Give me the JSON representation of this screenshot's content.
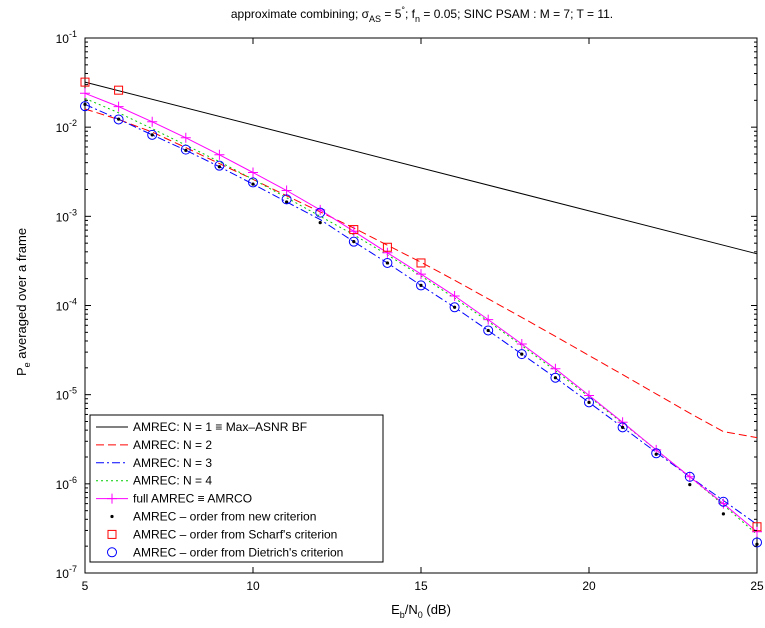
{
  "chart_data": {
    "type": "line",
    "title": {
      "pre": "approximate combining; σ",
      "sub1": "AS",
      "mid1": " = 5",
      "sup1": "°",
      "mid2": "; f",
      "sub2": "n",
      "post": " = 0.05; SINC PSAM : M = 7; T = 11."
    },
    "xlabel": {
      "main": "E",
      "sub1": "b",
      "mid": "/N",
      "sub2": "0",
      "post": " (dB)"
    },
    "ylabel": {
      "main": "P",
      "sub": "e",
      "post": " averaged over a frame"
    },
    "xlim": [
      5,
      25
    ],
    "ylim_log10": [
      -7,
      -1
    ],
    "yscale": "log",
    "grid": false,
    "legend_position": "bottom-left",
    "x_ticks": [
      5,
      10,
      15,
      20,
      25
    ],
    "x_tick_labels": [
      "5",
      "10",
      "15",
      "20",
      "25"
    ],
    "y_ticks": [
      -7,
      -6,
      -5,
      -4,
      -3,
      -2,
      -1
    ],
    "y_tick_labels": [
      {
        "base": "10",
        "exp": "-7"
      },
      {
        "base": "10",
        "exp": "-6"
      },
      {
        "base": "10",
        "exp": "-5"
      },
      {
        "base": "10",
        "exp": "-4"
      },
      {
        "base": "10",
        "exp": "-3"
      },
      {
        "base": "10",
        "exp": "-2"
      },
      {
        "base": "10",
        "exp": "-1"
      }
    ],
    "series": [
      {
        "name": "AMREC: N = 1 ≡ Max–ASNR BF",
        "color": "#000000",
        "dash": "solid",
        "marker": "none",
        "x": [
          5,
          25
        ],
        "y": [
          0.032,
          0.00038
        ]
      },
      {
        "name": "AMREC: N = 2",
        "color": "#ff0000",
        "dash": "dashed",
        "marker": "none",
        "x": [
          5,
          6,
          7,
          8,
          9,
          10,
          11,
          12,
          13,
          14,
          15,
          16,
          17,
          18,
          19,
          20,
          21,
          22,
          23,
          24,
          25
        ],
        "y": [
          0.016,
          0.0122,
          0.0088,
          0.0059,
          0.0039,
          0.0026,
          0.0017,
          0.00112,
          0.00074,
          0.000475,
          0.000305,
          0.000192,
          0.000119,
          7.35e-05,
          4.52e-05,
          2.75e-05,
          1.68e-05,
          1.02e-05,
          6.2e-06,
          3.85e-06,
          3.3e-06
        ]
      },
      {
        "name": "AMREC: N = 3",
        "color": "#0000ff",
        "dash": "dashdot",
        "marker": "none",
        "x": [
          5,
          6,
          7,
          8,
          9,
          10,
          11,
          12,
          13,
          14,
          15,
          16,
          17,
          18,
          19,
          20,
          21,
          22,
          23,
          24,
          25
        ],
        "y": [
          0.018,
          0.0123,
          0.0082,
          0.0055,
          0.0036,
          0.0023,
          0.00145,
          0.00092,
          0.00052,
          0.0003,
          0.000168,
          9.55e-05,
          5.25e-05,
          2.85e-05,
          1.55e-05,
          8.2e-06,
          4.3e-06,
          2.25e-06,
          1.2e-06,
          6.5e-07,
          3.5e-07
        ]
      },
      {
        "name": "AMREC: N = 4",
        "color": "#00cc00",
        "dash": "dotted",
        "marker": "none",
        "x": [
          5,
          6,
          7,
          8,
          9,
          10,
          11,
          12,
          13,
          14,
          15,
          16,
          17,
          18,
          19,
          20,
          21,
          22,
          23,
          24,
          25
        ],
        "y": [
          0.021,
          0.0145,
          0.0096,
          0.0063,
          0.0041,
          0.0026,
          0.00162,
          0.001,
          0.00062,
          0.00037,
          0.000215,
          0.000121,
          6.65e-05,
          3.55e-05,
          1.85e-05,
          9.5e-06,
          4.8e-06,
          2.4e-06,
          1.2e-06,
          5.8e-07,
          2.7e-07
        ]
      },
      {
        "name": "full AMREC ≡ AMRCO",
        "color": "#ff00ff",
        "dash": "solid",
        "marker": "plus",
        "x": [
          5,
          6,
          7,
          8,
          9,
          10,
          11,
          12,
          13,
          14,
          15,
          16,
          17,
          18,
          19,
          20,
          21,
          22,
          23,
          24,
          25
        ],
        "y": [
          0.024,
          0.017,
          0.0115,
          0.0076,
          0.0049,
          0.0031,
          0.00195,
          0.00118,
          0.00068,
          0.00039,
          0.000225,
          0.000128,
          6.95e-05,
          3.7e-05,
          1.95e-05,
          9.8e-06,
          4.9e-06,
          2.4e-06,
          1.2e-06,
          6e-07,
          2.9e-07
        ]
      },
      {
        "name": "AMREC – order from new criterion",
        "color": "#000000",
        "dash": "none",
        "marker": "dot",
        "x": [
          5,
          6,
          7,
          8,
          9,
          10,
          11,
          12,
          13,
          14,
          15,
          16,
          17,
          18,
          19,
          20,
          21,
          22,
          23,
          24,
          25
        ],
        "y": [
          0.018,
          0.0123,
          0.0082,
          0.0055,
          0.0036,
          0.0023,
          0.00145,
          0.00085,
          0.00052,
          0.0003,
          0.000168,
          9.55e-05,
          5.25e-05,
          2.85e-05,
          1.55e-05,
          8.2e-06,
          4.3e-06,
          2.15e-06,
          9.8e-07,
          4.6e-07,
          2.1e-07
        ]
      },
      {
        "name": "AMREC – order from Scharf's criterion",
        "color": "#ff0000",
        "dash": "none",
        "marker": "square",
        "x": [
          5,
          6,
          13,
          14,
          15,
          25
        ],
        "y": [
          0.032,
          0.026,
          0.00071,
          0.00045,
          0.0003,
          3.3e-07
        ]
      },
      {
        "name": "AMREC – order from Dietrich's criterion",
        "color": "#0000ff",
        "dash": "none",
        "marker": "circle",
        "x": [
          5,
          6,
          7,
          8,
          9,
          10,
          11,
          12,
          13,
          14,
          15,
          16,
          17,
          18,
          19,
          20,
          21,
          22,
          23,
          24,
          25
        ],
        "y": [
          0.0172,
          0.0122,
          0.0082,
          0.0056,
          0.0037,
          0.0024,
          0.00155,
          0.0011,
          0.00052,
          0.0003,
          0.000168,
          9.55e-05,
          5.25e-05,
          2.85e-05,
          1.55e-05,
          8.2e-06,
          4.3e-06,
          2.2e-06,
          1.2e-06,
          6.3e-07,
          2.2e-07
        ]
      }
    ]
  }
}
